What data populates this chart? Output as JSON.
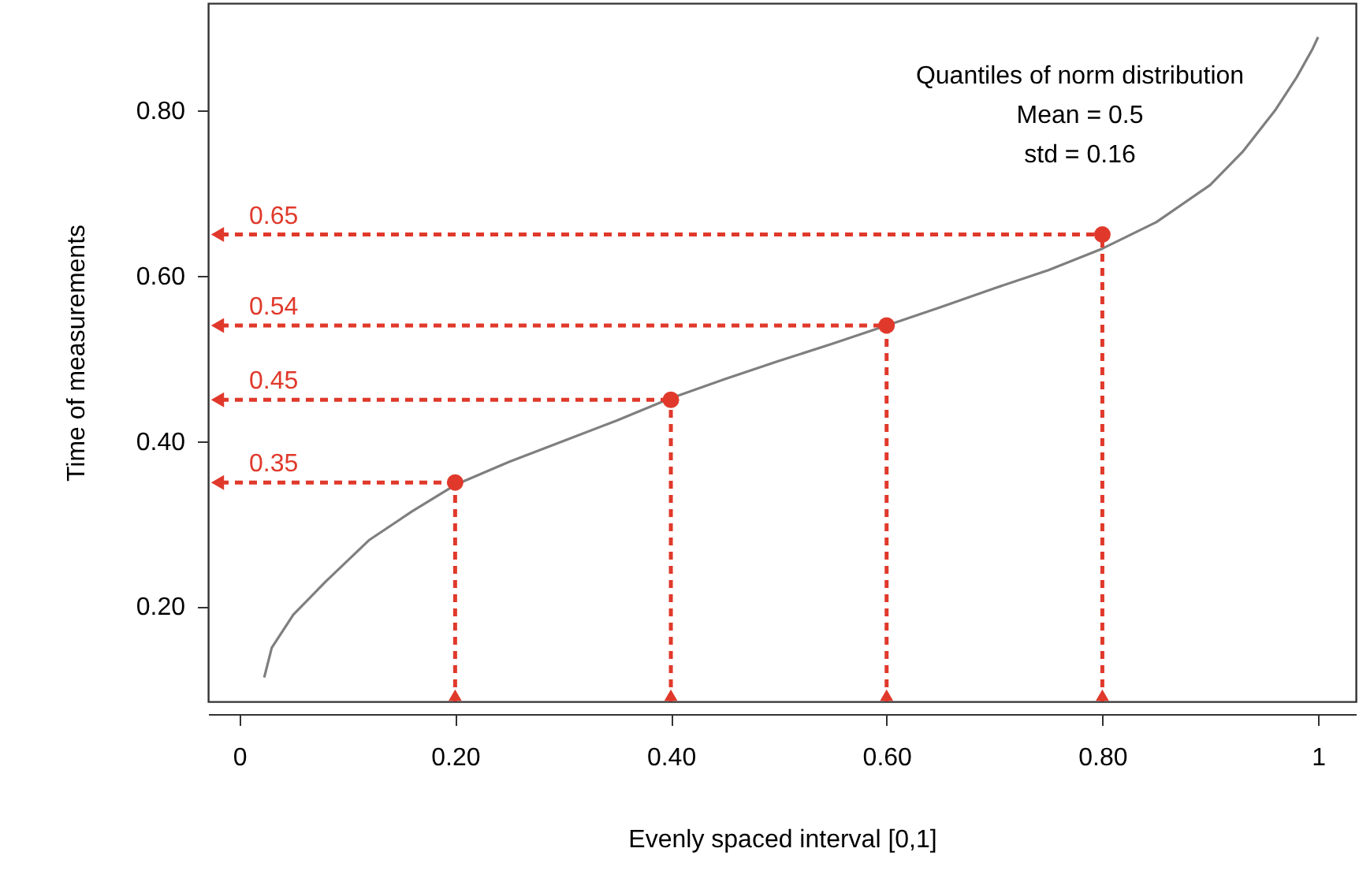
{
  "chart_data": {
    "type": "line",
    "xlabel": "Evenly spaced interval [0,1]",
    "ylabel": "Time of measurements",
    "annotations": [
      "Quantiles of norm distribution",
      "Mean = 0.5",
      "std =  0.16"
    ],
    "xlim": [
      -0.029,
      1.035
    ],
    "ylim": [
      0.085,
      0.93
    ],
    "xticks": [
      0,
      {
        "value": 0.2,
        "label": "0.20"
      },
      {
        "value": 0.4,
        "label": "0.40"
      },
      {
        "value": 0.6,
        "label": "0.60"
      },
      {
        "value": 0.8,
        "label": "0.80"
      },
      1
    ],
    "yticks": [
      {
        "value": 0.2,
        "label": "0.20"
      },
      {
        "value": 0.4,
        "label": "0.40"
      },
      {
        "value": 0.6,
        "label": "0.60"
      },
      {
        "value": 0.8,
        "label": "0.80"
      }
    ],
    "series": [
      {
        "color": "#7f7f7f",
        "x": [
          0.023,
          0.03,
          0.05,
          0.08,
          0.12,
          0.16,
          0.2,
          0.25,
          0.3,
          0.35,
          0.4,
          0.45,
          0.5,
          0.55,
          0.6,
          0.65,
          0.7,
          0.75,
          0.8,
          0.85,
          0.9,
          0.93,
          0.96,
          0.98,
          0.995,
          1.0
        ],
        "values": [
          0.114,
          0.15,
          0.19,
          0.23,
          0.28,
          0.315,
          0.347,
          0.375,
          0.4,
          0.425,
          0.452,
          0.475,
          0.497,
          0.518,
          0.54,
          0.562,
          0.585,
          0.607,
          0.633,
          0.665,
          0.71,
          0.75,
          0.8,
          0.84,
          0.875,
          0.889
        ]
      },
      {
        "type": "scatter",
        "color": "#e0392b",
        "marker": "circle",
        "line_style": "dashed",
        "x": [
          0.2,
          0.4,
          0.6,
          0.8
        ],
        "values": [
          0.35,
          0.45,
          0.54,
          0.65
        ],
        "value_labels": [
          "0.35",
          "0.45",
          "0.54",
          "0.65"
        ]
      }
    ]
  }
}
